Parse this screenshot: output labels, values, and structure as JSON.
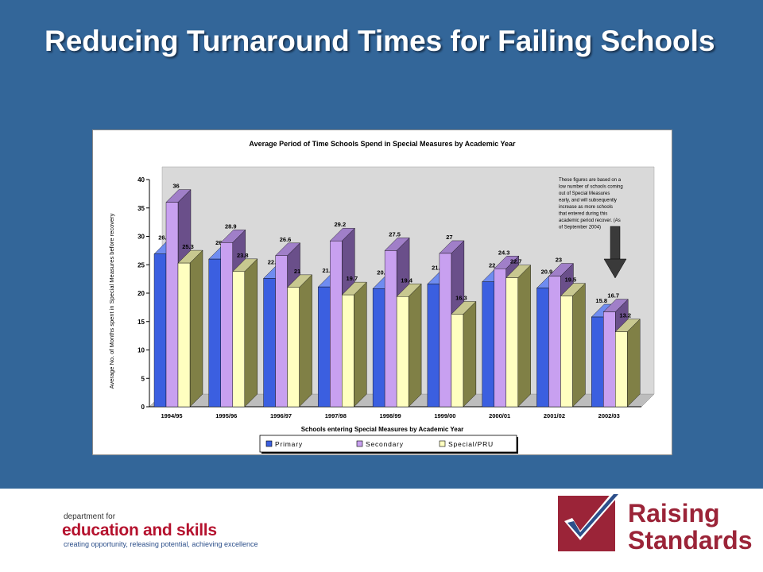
{
  "slide": {
    "title": "Reducing Turnaround Times for Failing Schools"
  },
  "footer": {
    "dfes_line1": "department for",
    "dfes_line2": "education and skills",
    "dfes_line3": "creating opportunity, releasing potential, achieving excellence",
    "rs_word1": "Raising",
    "rs_word2": "Standards"
  },
  "colors": {
    "background": "#336699",
    "primary": "#3b5fe0",
    "secondary": "#c8a0f0",
    "special": "#ffffc0",
    "brand_red": "#9b2438"
  },
  "chart_data": {
    "type": "bar",
    "title": "Average Period of Time Schools Spend in Special Measures by Academic Year",
    "xlabel": "Schools entering Special Measures by Academic Year",
    "ylabel": "Average No. of Months spent in Special Measures before recovery",
    "ylim": [
      0,
      40
    ],
    "yticks": [
      0,
      5,
      10,
      15,
      20,
      25,
      30,
      35,
      40
    ],
    "categories": [
      "1994/95",
      "1995/96",
      "1996/97",
      "1997/98",
      "1998/99",
      "1999/00",
      "2000/01",
      "2001/02",
      "2002/03"
    ],
    "series": [
      {
        "name": "Primary",
        "values": [
          26.9,
          26,
          22.6,
          21.1,
          20.8,
          21.6,
          22,
          20.9,
          15.8
        ]
      },
      {
        "name": "Secondary",
        "values": [
          36,
          28.9,
          26.6,
          29.2,
          27.5,
          27,
          24.3,
          23,
          16.7
        ]
      },
      {
        "name": "Special/PRU",
        "values": [
          25.3,
          23.8,
          21,
          19.7,
          19.4,
          16.3,
          22.7,
          19.5,
          13.2
        ]
      }
    ],
    "annotation": "These figures are based on a low number of schools coming out of Special Measures early, and will subsequently increase as more schools that entered during this academic period recover. (As of September 2004)",
    "legend_position": "bottom",
    "grid": false
  }
}
